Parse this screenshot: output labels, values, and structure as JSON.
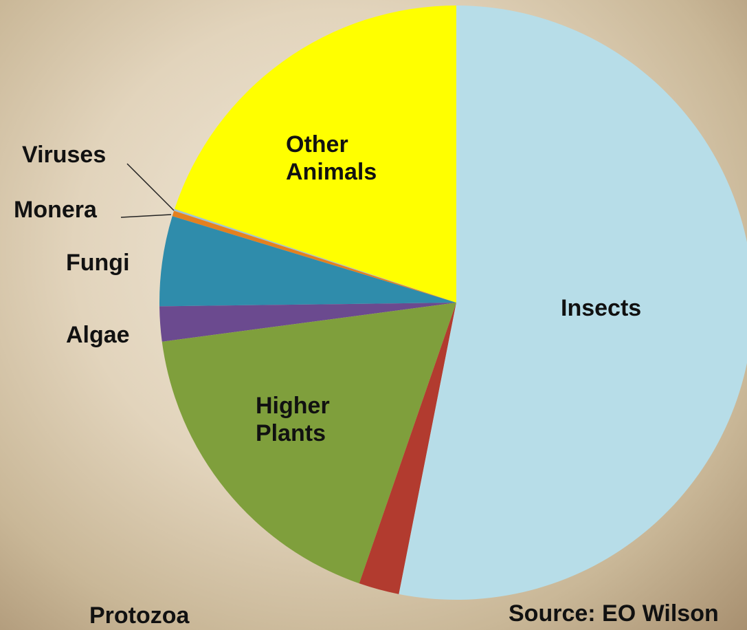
{
  "chart_data": {
    "type": "pie",
    "categories": [
      "Insects",
      "Protozoa",
      "Higher Plants",
      "Algae",
      "Fungi",
      "Monera",
      "Viruses",
      "Other Animals"
    ],
    "values": [
      53.1,
      2.2,
      17.6,
      1.9,
      4.9,
      0.3,
      0.1,
      19.9
    ],
    "colors": [
      "#b7dde8",
      "#b23b2f",
      "#7f9f3c",
      "#6b4a8f",
      "#2f8cab",
      "#e4801f",
      "#9ec3d6",
      "#ffff00"
    ],
    "source": "Source: EO Wilson"
  }
}
